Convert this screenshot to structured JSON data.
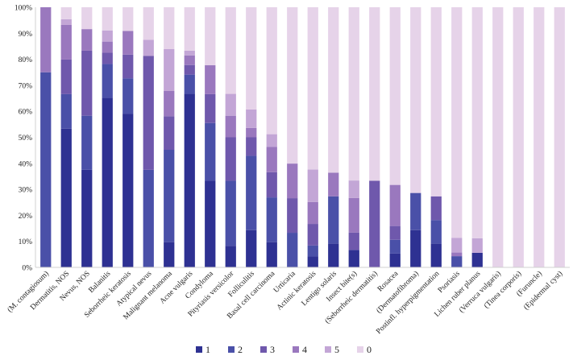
{
  "chart_data": {
    "type": "bar",
    "stacked": true,
    "title": "",
    "xlabel": "",
    "ylabel": "",
    "ylim": [
      0,
      100
    ],
    "y_ticks": [
      0,
      10,
      20,
      30,
      40,
      50,
      60,
      70,
      80,
      90,
      100
    ],
    "y_tick_suffix": "%",
    "grid": false,
    "legend_position": "bottom",
    "categories": [
      "(M. contagiosum)",
      "Dermatitis, NOS",
      "Nevus, NOS",
      "Balanitis",
      "Seborrheic keratosis",
      "Atypical nevus",
      "Malignant melanoma",
      "Acne vulgaris",
      "Condyloma",
      "Pityriasis versicolor",
      "Folliculitis",
      "Basal cell carcinoma",
      "Urticaria",
      "Actinic keratosis",
      "Lentigo solaris",
      "Insect bite(s)",
      "(Seborrheic dermatitis)",
      "Rosacea",
      "(Dermatofibroma)",
      "Postinfl. hyperpigmentation",
      "Psoriasis",
      "Lichen ruber planus",
      "(Verruca vulgaris)",
      "(Tinea corporis)",
      "(Furuncle)",
      "(Epidermal cyst)"
    ],
    "series": [
      {
        "name": "1",
        "color": "#2e3192",
        "values": [
          0,
          53.3,
          37.5,
          65.2,
          59.1,
          0,
          9.7,
          66.7,
          33.3,
          8.3,
          14.3,
          9.7,
          0,
          4.2,
          9.1,
          6.7,
          0,
          5.3,
          14.3,
          9.1,
          0,
          5.6,
          0,
          0,
          0,
          0
        ]
      },
      {
        "name": "2",
        "color": "#4a50a8",
        "values": [
          75,
          13.3,
          20.8,
          13.0,
          13.6,
          37.5,
          35.5,
          7.4,
          22.2,
          25.0,
          28.6,
          17.2,
          13.3,
          4.2,
          18.2,
          0,
          0,
          5.3,
          14.3,
          9.1,
          4.3,
          0,
          0,
          0,
          0,
          0
        ]
      },
      {
        "name": "3",
        "color": "#6f58ac",
        "values": [
          0,
          13.3,
          25.0,
          4.3,
          9.1,
          43.8,
          12.9,
          3.7,
          11.1,
          16.7,
          7.1,
          9.7,
          13.3,
          8.3,
          0,
          6.7,
          33.3,
          5.3,
          0,
          9.1,
          0,
          0,
          0,
          0,
          0,
          0
        ]
      },
      {
        "name": "4",
        "color": "#9a78be",
        "values": [
          25,
          13.3,
          8.3,
          4.3,
          9.1,
          0,
          9.7,
          3.7,
          11.1,
          8.3,
          3.6,
          9.7,
          13.3,
          8.4,
          9.1,
          13.3,
          0,
          15.8,
          0,
          0,
          1.4,
          0,
          0,
          0,
          0,
          0
        ]
      },
      {
        "name": "5",
        "color": "#c3a6d6",
        "values": [
          0,
          2.2,
          0,
          4.3,
          0,
          6.2,
          16.1,
          1.8,
          0,
          8.4,
          7.1,
          4.9,
          0,
          12.5,
          0,
          6.7,
          0,
          0,
          0,
          0,
          5.6,
          5.6,
          0,
          0,
          0,
          0
        ]
      },
      {
        "name": "0",
        "color": "#e6d3e9",
        "values": [
          0,
          4.6,
          8.4,
          8.9,
          9.1,
          12.5,
          16.1,
          16.7,
          22.3,
          33.3,
          39.3,
          48.8,
          60.1,
          62.4,
          63.6,
          66.6,
          66.7,
          68.3,
          71.4,
          72.7,
          88.7,
          88.8,
          100,
          100,
          100,
          100
        ]
      }
    ]
  }
}
